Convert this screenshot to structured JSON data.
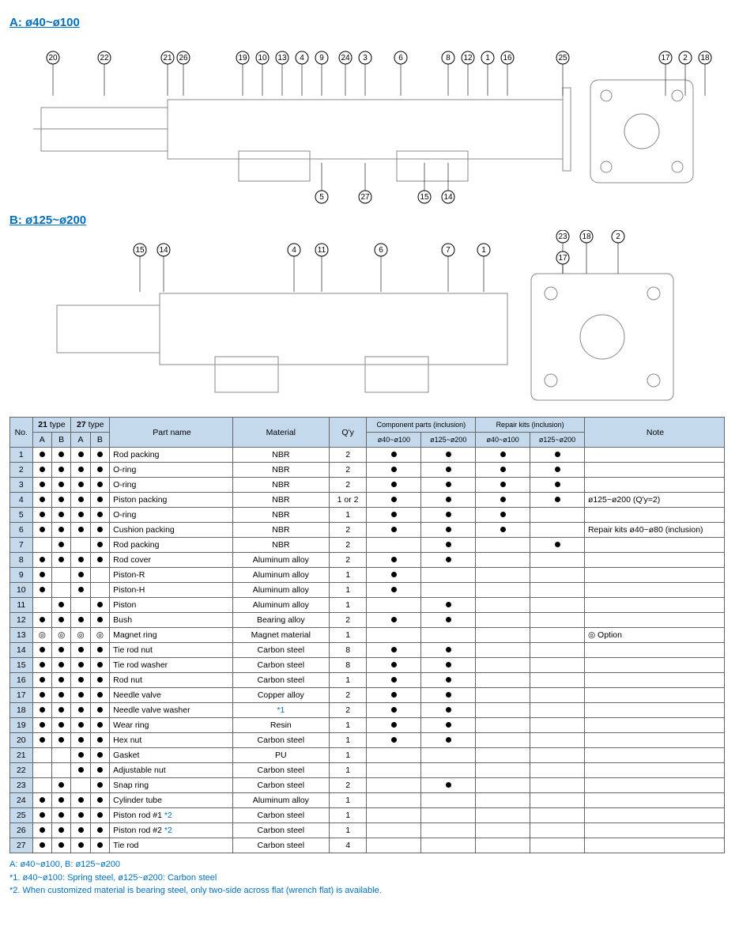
{
  "sectionA": {
    "title": "A: ø40~ø100",
    "callouts": [
      "20",
      "22",
      "21",
      "26",
      "19",
      "10",
      "13",
      "4",
      "9",
      "24",
      "3",
      "6",
      "8",
      "12",
      "1",
      "16",
      "25",
      "17",
      "2",
      "18",
      "5",
      "27",
      "15",
      "14"
    ]
  },
  "sectionB": {
    "title": "B: ø125~ø200",
    "callouts": [
      "15",
      "14",
      "4",
      "11",
      "6",
      "7",
      "1",
      "23",
      "18",
      "2",
      "17"
    ]
  },
  "table": {
    "headers": {
      "no": "No.",
      "t21": "21 type",
      "t27": "27 type",
      "A": "A",
      "B": "B",
      "part": "Part name",
      "mat": "Material",
      "qy": "Q'y",
      "comp": "Component parts (inclusion)",
      "rep": "Repair kits (inclusion)",
      "note": "Note",
      "r1": "ø40~ø100",
      "r2": "ø125~ø200"
    },
    "rows": [
      {
        "no": "1",
        "a21": "d",
        "b21": "d",
        "a27": "d",
        "b27": "d",
        "pn": "Rod packing",
        "mat": "NBR",
        "qy": "2",
        "c1": "d",
        "c2": "d",
        "k1": "d",
        "k2": "d",
        "nt": ""
      },
      {
        "no": "2",
        "a21": "d",
        "b21": "d",
        "a27": "d",
        "b27": "d",
        "pn": "O-ring",
        "mat": "NBR",
        "qy": "2",
        "c1": "d",
        "c2": "d",
        "k1": "d",
        "k2": "d",
        "nt": ""
      },
      {
        "no": "3",
        "a21": "d",
        "b21": "d",
        "a27": "d",
        "b27": "d",
        "pn": "O-ring",
        "mat": "NBR",
        "qy": "2",
        "c1": "d",
        "c2": "d",
        "k1": "d",
        "k2": "d",
        "nt": ""
      },
      {
        "no": "4",
        "a21": "d",
        "b21": "d",
        "a27": "d",
        "b27": "d",
        "pn": "Piston packing",
        "mat": "NBR",
        "qy": "1 or 2",
        "c1": "d",
        "c2": "d",
        "k1": "d",
        "k2": "d",
        "nt": "ø125~ø200 (Q'y=2)"
      },
      {
        "no": "5",
        "a21": "d",
        "b21": "d",
        "a27": "d",
        "b27": "d",
        "pn": "O-ring",
        "mat": "NBR",
        "qy": "1",
        "c1": "d",
        "c2": "d",
        "k1": "d",
        "k2": "",
        "nt": ""
      },
      {
        "no": "6",
        "a21": "d",
        "b21": "d",
        "a27": "d",
        "b27": "d",
        "pn": "Cushion packing",
        "mat": "NBR",
        "qy": "2",
        "c1": "d",
        "c2": "d",
        "k1": "d",
        "k2": "",
        "nt": "Repair kits ø40~ø80 (inclusion)"
      },
      {
        "no": "7",
        "a21": "",
        "b21": "d",
        "a27": "",
        "b27": "d",
        "pn": "Rod packing",
        "mat": "NBR",
        "qy": "2",
        "c1": "",
        "c2": "d",
        "k1": "",
        "k2": "d",
        "nt": ""
      },
      {
        "no": "8",
        "a21": "d",
        "b21": "d",
        "a27": "d",
        "b27": "d",
        "pn": "Rod cover",
        "mat": "Aluminum alloy",
        "qy": "2",
        "c1": "d",
        "c2": "d",
        "k1": "",
        "k2": "",
        "nt": ""
      },
      {
        "no": "9",
        "a21": "d",
        "b21": "",
        "a27": "d",
        "b27": "",
        "pn": "Piston-R",
        "mat": "Aluminum alloy",
        "qy": "1",
        "c1": "d",
        "c2": "",
        "k1": "",
        "k2": "",
        "nt": ""
      },
      {
        "no": "10",
        "a21": "d",
        "b21": "",
        "a27": "d",
        "b27": "",
        "pn": "Piston-H",
        "mat": "Aluminum alloy",
        "qy": "1",
        "c1": "d",
        "c2": "",
        "k1": "",
        "k2": "",
        "nt": ""
      },
      {
        "no": "11",
        "a21": "",
        "b21": "d",
        "a27": "",
        "b27": "d",
        "pn": "Piston",
        "mat": "Aluminum alloy",
        "qy": "1",
        "c1": "",
        "c2": "d",
        "k1": "",
        "k2": "",
        "nt": ""
      },
      {
        "no": "12",
        "a21": "d",
        "b21": "d",
        "a27": "d",
        "b27": "d",
        "pn": "Bush",
        "mat": "Bearing alloy",
        "qy": "2",
        "c1": "d",
        "c2": "d",
        "k1": "",
        "k2": "",
        "nt": ""
      },
      {
        "no": "13",
        "a21": "o",
        "b21": "o",
        "a27": "o",
        "b27": "o",
        "pn": "Magnet ring",
        "mat": "Magnet material",
        "qy": "1",
        "c1": "",
        "c2": "",
        "k1": "",
        "k2": "",
        "nt": "◎ Option"
      },
      {
        "no": "14",
        "a21": "d",
        "b21": "d",
        "a27": "d",
        "b27": "d",
        "pn": "Tie rod nut",
        "mat": "Carbon steel",
        "qy": "8",
        "c1": "d",
        "c2": "d",
        "k1": "",
        "k2": "",
        "nt": ""
      },
      {
        "no": "15",
        "a21": "d",
        "b21": "d",
        "a27": "d",
        "b27": "d",
        "pn": "Tie rod washer",
        "mat": "Carbon steel",
        "qy": "8",
        "c1": "d",
        "c2": "d",
        "k1": "",
        "k2": "",
        "nt": ""
      },
      {
        "no": "16",
        "a21": "d",
        "b21": "d",
        "a27": "d",
        "b27": "d",
        "pn": "Rod nut",
        "mat": "Carbon steel",
        "qy": "1",
        "c1": "d",
        "c2": "d",
        "k1": "",
        "k2": "",
        "nt": ""
      },
      {
        "no": "17",
        "a21": "d",
        "b21": "d",
        "a27": "d",
        "b27": "d",
        "pn": "Needle valve",
        "mat": "Copper alloy",
        "qy": "2",
        "c1": "d",
        "c2": "d",
        "k1": "",
        "k2": "",
        "nt": ""
      },
      {
        "no": "18",
        "a21": "d",
        "b21": "d",
        "a27": "d",
        "b27": "d",
        "pn": "Needle valve washer",
        "mat": "*1",
        "matblue": true,
        "qy": "2",
        "c1": "d",
        "c2": "d",
        "k1": "",
        "k2": "",
        "nt": ""
      },
      {
        "no": "19",
        "a21": "d",
        "b21": "d",
        "a27": "d",
        "b27": "d",
        "pn": "Wear ring",
        "mat": "Resin",
        "qy": "1",
        "c1": "d",
        "c2": "d",
        "k1": "",
        "k2": "",
        "nt": ""
      },
      {
        "no": "20",
        "a21": "d",
        "b21": "d",
        "a27": "d",
        "b27": "d",
        "pn": "Hex nut",
        "mat": "Carbon steel",
        "qy": "1",
        "c1": "d",
        "c2": "d",
        "k1": "",
        "k2": "",
        "nt": ""
      },
      {
        "no": "21",
        "a21": "",
        "b21": "",
        "a27": "d",
        "b27": "d",
        "pn": "Gasket",
        "mat": "PU",
        "qy": "1",
        "c1": "",
        "c2": "",
        "k1": "",
        "k2": "",
        "nt": ""
      },
      {
        "no": "22",
        "a21": "",
        "b21": "",
        "a27": "d",
        "b27": "d",
        "pn": "Adjustable nut",
        "mat": "Carbon steel",
        "qy": "1",
        "c1": "",
        "c2": "",
        "k1": "",
        "k2": "",
        "nt": ""
      },
      {
        "no": "23",
        "a21": "",
        "b21": "d",
        "a27": "",
        "b27": "d",
        "pn": "Snap ring",
        "mat": "Carbon steel",
        "qy": "2",
        "c1": "",
        "c2": "d",
        "k1": "",
        "k2": "",
        "nt": ""
      },
      {
        "no": "24",
        "a21": "d",
        "b21": "d",
        "a27": "d",
        "b27": "d",
        "pn": "Cylinder tube",
        "mat": "Aluminum alloy",
        "qy": "1",
        "c1": "",
        "c2": "",
        "k1": "",
        "k2": "",
        "nt": ""
      },
      {
        "no": "25",
        "a21": "d",
        "b21": "d",
        "a27": "d",
        "b27": "d",
        "pn": "Piston rod #1 *2",
        "pnblue": "*2",
        "mat": "Carbon steel",
        "qy": "1",
        "c1": "",
        "c2": "",
        "k1": "",
        "k2": "",
        "nt": ""
      },
      {
        "no": "26",
        "a21": "d",
        "b21": "d",
        "a27": "d",
        "b27": "d",
        "pn": "Piston rod #2 *2",
        "pnblue": "*2",
        "mat": "Carbon steel",
        "qy": "1",
        "c1": "",
        "c2": "",
        "k1": "",
        "k2": "",
        "nt": ""
      },
      {
        "no": "27",
        "a21": "d",
        "b21": "d",
        "a27": "d",
        "b27": "d",
        "pn": "Tie rod",
        "mat": "Carbon steel",
        "qy": "4",
        "c1": "",
        "c2": "",
        "k1": "",
        "k2": "",
        "nt": ""
      }
    ]
  },
  "footnotes": {
    "f0": "A: ø40~ø100, B: ø125~ø200",
    "f1": "*1. ø40~ø100: Spring steel, ø125~ø200: Carbon steel",
    "f2": "*2. When customized material is bearing steel, only two-side across flat (wrench flat) is available."
  },
  "colors": {
    "header_bg": "#c5d9ed",
    "border": "#666666",
    "blue": "#0070c0"
  }
}
